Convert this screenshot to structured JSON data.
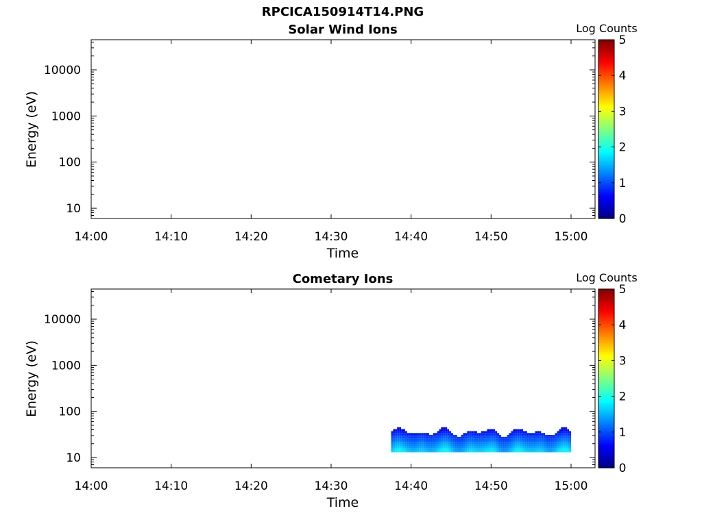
{
  "page": {
    "title": "RPCICA150914T14.PNG"
  },
  "chart_data": [
    {
      "type": "heatmap",
      "title": "Solar Wind Ions",
      "xlabel": "Time",
      "ylabel": "Energy (eV)",
      "x_ticks": [
        "14:00",
        "14:10",
        "14:20",
        "14:30",
        "14:40",
        "14:50",
        "15:00"
      ],
      "x_range_minutes": [
        0,
        63
      ],
      "y_scale": "log",
      "y_ticks": [
        10,
        100,
        1000,
        10000
      ],
      "y_tick_labels": [
        "10",
        "100",
        "1000",
        "10000"
      ],
      "y_range": [
        6,
        45000
      ],
      "colorbar": {
        "label": "Log Counts",
        "range": [
          0,
          5
        ],
        "ticks": [
          "0",
          "1",
          "2",
          "3",
          "4",
          "5"
        ],
        "colormap": "jet"
      },
      "data": []
    },
    {
      "type": "heatmap",
      "title": "Cometary Ions",
      "xlabel": "Time",
      "ylabel": "Energy (eV)",
      "x_ticks": [
        "14:00",
        "14:10",
        "14:20",
        "14:30",
        "14:40",
        "14:50",
        "15:00"
      ],
      "x_range_minutes": [
        0,
        63
      ],
      "y_scale": "log",
      "y_ticks": [
        10,
        100,
        1000,
        10000
      ],
      "y_tick_labels": [
        "10",
        "100",
        "1000",
        "10000"
      ],
      "y_range": [
        6,
        45000
      ],
      "colorbar": {
        "label": "Log Counts",
        "range": [
          0,
          5
        ],
        "ticks": [
          "0",
          "1",
          "2",
          "3",
          "4",
          "5"
        ],
        "colormap": "jet"
      },
      "data_time_range": [
        "14:37:30",
        "15:00:00"
      ],
      "data_energy_range_eV": [
        13,
        50
      ],
      "data_log_counts_range": [
        0.3,
        1.8
      ]
    }
  ]
}
